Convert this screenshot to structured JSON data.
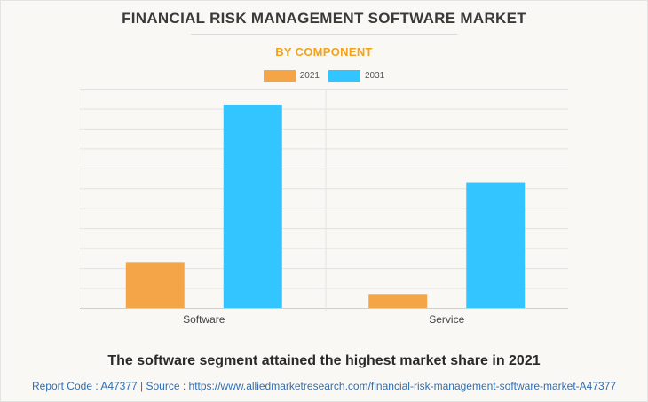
{
  "header": {
    "title": "FINANCIAL RISK MANAGEMENT SOFTWARE MARKET",
    "subtitle": "BY COMPONENT"
  },
  "caption": "The software segment attained the highest market share in 2021",
  "footer": {
    "text": "Report Code : A47377  |  Source : https://www.alliedmarketresearch.com/financial-risk-management-software-market-A47377"
  },
  "colors": {
    "s2021": "#f4a547",
    "s2031": "#33c5ff",
    "grid": "#e2e2e2",
    "axis": "#cfcfcf"
  },
  "chart_data": {
    "type": "bar",
    "categories": [
      "Software",
      "Service"
    ],
    "series": [
      {
        "name": "2021",
        "values": [
          2.3,
          0.7
        ]
      },
      {
        "name": "2031",
        "values": [
          10.2,
          6.3
        ]
      }
    ],
    "ylim": [
      0,
      11
    ],
    "y_gridlines": 11,
    "grid": true,
    "legend": "top-center",
    "xlabel": "",
    "ylabel": ""
  }
}
